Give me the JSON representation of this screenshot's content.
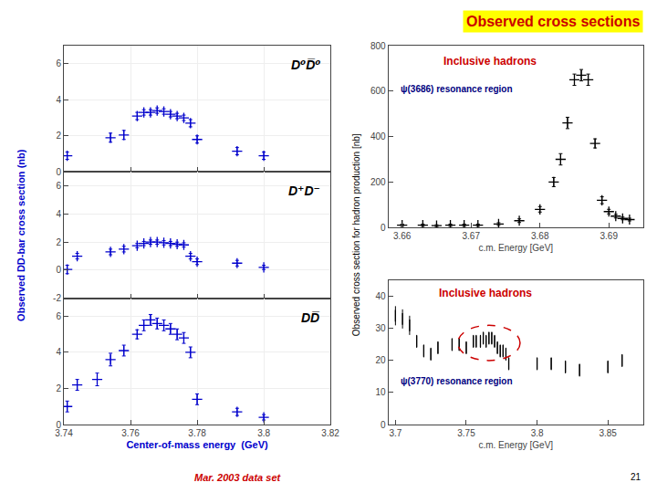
{
  "title": "Observed cross sections",
  "annotations": [
    "Observed DD-bar cross section (nb)",
    "Observed cross section for hadron production [nb]",
    "Mar. 2003 data set",
    "21"
  ],
  "chart_data": [
    {
      "type": "scatter",
      "title": "D⁰D̅⁰",
      "x": [
        3.741,
        3.754,
        3.758,
        3.762,
        3.764,
        3.766,
        3.768,
        3.77,
        3.772,
        3.774,
        3.776,
        3.778,
        3.78,
        3.792,
        3.8
      ],
      "values": [
        0.9,
        1.9,
        2.05,
        3.1,
        3.3,
        3.3,
        3.4,
        3.35,
        3.2,
        3.1,
        3.0,
        2.7,
        1.8,
        1.15,
        0.9
      ],
      "yerr": [
        0.2,
        0.25,
        0.25,
        0.2,
        0.15,
        0.15,
        0.15,
        0.15,
        0.15,
        0.15,
        0.15,
        0.2,
        0.2,
        0.2,
        0.2
      ],
      "color": "#0000cc",
      "marker": "plus",
      "xlim": [
        3.74,
        3.82
      ],
      "xticks": [
        3.74,
        3.76,
        3.78,
        3.8,
        3.82
      ],
      "ylim": [
        0,
        7
      ],
      "yticks": [
        0,
        2,
        4,
        6
      ],
      "grid": true,
      "tick_labels": "y"
    },
    {
      "type": "scatter",
      "title": "D⁺D⁻",
      "x": [
        3.741,
        3.744,
        3.754,
        3.758,
        3.762,
        3.764,
        3.766,
        3.768,
        3.77,
        3.772,
        3.774,
        3.776,
        3.778,
        3.78,
        3.792,
        3.8
      ],
      "values": [
        0.05,
        1.0,
        1.3,
        1.5,
        1.75,
        1.9,
        2.0,
        2.0,
        1.95,
        1.9,
        1.85,
        1.8,
        1.0,
        0.6,
        0.5,
        0.2
      ],
      "yerr": [
        0.3,
        0.2,
        0.2,
        0.2,
        0.15,
        0.15,
        0.15,
        0.15,
        0.15,
        0.15,
        0.15,
        0.15,
        0.2,
        0.2,
        0.2,
        0.15
      ],
      "color": "#0000cc",
      "marker": "plus",
      "xlim": [
        3.74,
        3.82
      ],
      "xticks": [
        3.74,
        3.76,
        3.78,
        3.8,
        3.82
      ],
      "ylim": [
        -2,
        7
      ],
      "yticks": [
        -2,
        0,
        2,
        4,
        6
      ],
      "grid": true,
      "tick_labels": "y"
    },
    {
      "type": "scatter",
      "title": "DD̅",
      "xlabel": "Center-of-mass energy  (GeV)",
      "x": [
        3.741,
        3.744,
        3.75,
        3.754,
        3.758,
        3.762,
        3.764,
        3.766,
        3.768,
        3.77,
        3.772,
        3.774,
        3.776,
        3.778,
        3.78,
        3.792,
        3.8
      ],
      "values": [
        1.0,
        2.2,
        2.5,
        3.6,
        4.1,
        5.0,
        5.5,
        5.8,
        5.6,
        5.5,
        5.3,
        5.0,
        4.8,
        4.0,
        1.4,
        0.7,
        0.4
      ],
      "yerr": [
        0.3,
        0.3,
        0.35,
        0.35,
        0.3,
        0.25,
        0.3,
        0.3,
        0.3,
        0.3,
        0.3,
        0.3,
        0.3,
        0.3,
        0.3,
        0.2,
        0.15
      ],
      "color": "#0000cc",
      "marker": "plus",
      "xlim": [
        3.74,
        3.82
      ],
      "xticks": [
        3.74,
        3.76,
        3.78,
        3.8,
        3.82
      ],
      "ylim": [
        0,
        7
      ],
      "yticks": [
        0,
        2,
        4,
        6
      ],
      "grid": true
    },
    {
      "type": "scatter",
      "title": "Inclusive hadrons",
      "subtitle": "ψ(3686) resonance region",
      "xlabel": "c.m. Energy [GeV]",
      "x": [
        3.66,
        3.663,
        3.665,
        3.667,
        3.669,
        3.671,
        3.674,
        3.677,
        3.68,
        3.682,
        3.683,
        3.684,
        3.685,
        3.686,
        3.687,
        3.688,
        3.689,
        3.69,
        3.691,
        3.692,
        3.693
      ],
      "values": [
        10,
        10,
        8,
        10,
        10,
        10,
        15,
        30,
        80,
        200,
        300,
        460,
        650,
        670,
        650,
        370,
        120,
        70,
        50,
        40,
        35
      ],
      "yerr": [
        5,
        5,
        4,
        5,
        5,
        5,
        6,
        8,
        12,
        20,
        25,
        25,
        25,
        25,
        25,
        20,
        15,
        10,
        8,
        6,
        6
      ],
      "color": "#000000",
      "marker": "plus",
      "xlim": [
        3.658,
        3.695
      ],
      "xticks": [
        3.66,
        3.67,
        3.68,
        3.69
      ],
      "ylim": [
        0,
        800
      ],
      "yticks": [
        0,
        200,
        400,
        600,
        800
      ],
      "grid": false
    },
    {
      "type": "scatter",
      "title": "Inclusive hadrons",
      "subtitle": "ψ(3770) resonance region",
      "xlabel": "c.m. Energy [GeV]",
      "x": [
        3.7,
        3.705,
        3.71,
        3.715,
        3.72,
        3.725,
        3.73,
        3.74,
        3.745,
        3.75,
        3.755,
        3.757,
        3.76,
        3.762,
        3.764,
        3.766,
        3.768,
        3.77,
        3.772,
        3.774,
        3.776,
        3.778,
        3.78,
        3.8,
        3.81,
        3.82,
        3.83,
        3.85,
        3.86
      ],
      "values": [
        34,
        33,
        31,
        26,
        23,
        22,
        24,
        25,
        25,
        24,
        26,
        26,
        26,
        27,
        26,
        27,
        27,
        26,
        24,
        23,
        23,
        22,
        19,
        19,
        19,
        18,
        17,
        18,
        20
      ],
      "yerr": [
        3,
        3,
        3,
        2,
        2,
        2,
        2,
        2,
        2,
        2,
        2,
        2,
        2,
        2,
        2,
        2,
        2,
        2,
        2,
        2,
        2,
        2,
        2,
        2,
        2,
        2,
        2,
        2,
        2
      ],
      "color": "#000000",
      "marker": "vline",
      "xlim": [
        3.695,
        3.875
      ],
      "xticks": [
        3.7,
        3.75,
        3.8,
        3.85
      ],
      "ylim": [
        0,
        45
      ],
      "yticks": [
        0,
        10,
        20,
        30,
        40
      ],
      "grid": false,
      "ellipse": {
        "cx": 3.766,
        "cy": 25.5,
        "rx": 0.022,
        "ry": 5.5
      }
    }
  ]
}
